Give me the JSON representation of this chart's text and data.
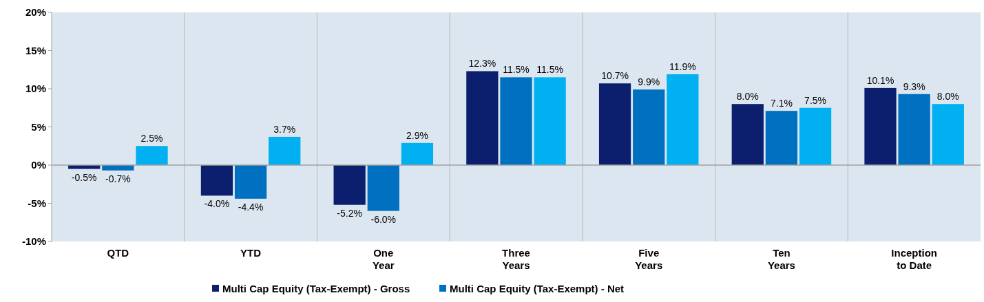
{
  "chart_data": {
    "type": "bar",
    "categories": [
      "QTD",
      "YTD",
      "One\nYear",
      "Three\nYears",
      "Five\nYears",
      "Ten\nYears",
      "Inception\nto Date"
    ],
    "series": [
      {
        "name": "Multi Cap Equity (Tax-Exempt) - Gross",
        "color": "#0c1f6e",
        "values": [
          -0.5,
          -4.0,
          -5.2,
          12.3,
          10.7,
          8.0,
          10.1
        ],
        "value_labels": [
          "-0.5%",
          "-4.0%",
          "-5.2%",
          "12.3%",
          "10.7%",
          "8.0%",
          "10.1%"
        ]
      },
      {
        "name": "Multi Cap Equity (Tax-Exempt) - Net",
        "color": "#0070c0",
        "values": [
          -0.7,
          -4.4,
          -6.0,
          11.5,
          9.9,
          7.1,
          9.3
        ],
        "value_labels": [
          "-0.7%",
          "-4.4%",
          "-6.0%",
          "11.5%",
          "9.9%",
          "7.1%",
          "9.3%"
        ]
      },
      {
        "color": "#00b0f0",
        "values": [
          2.5,
          3.7,
          2.9,
          11.5,
          11.9,
          7.5,
          8.0
        ],
        "value_labels": [
          "2.5%",
          "3.7%",
          "2.9%",
          "11.5%",
          "11.9%",
          "7.5%",
          "8.0%"
        ]
      }
    ],
    "ylim": [
      -10,
      20
    ],
    "yticks": [
      {
        "value": -10,
        "label": "-10%"
      },
      {
        "value": -5,
        "label": "-5%"
      },
      {
        "value": 0,
        "label": "0%"
      },
      {
        "value": 5,
        "label": "5%"
      },
      {
        "value": 10,
        "label": "10%"
      },
      {
        "value": 15,
        "label": "15%"
      },
      {
        "value": 20,
        "label": "20%"
      }
    ],
    "legend": "bottom",
    "grid": "x"
  }
}
